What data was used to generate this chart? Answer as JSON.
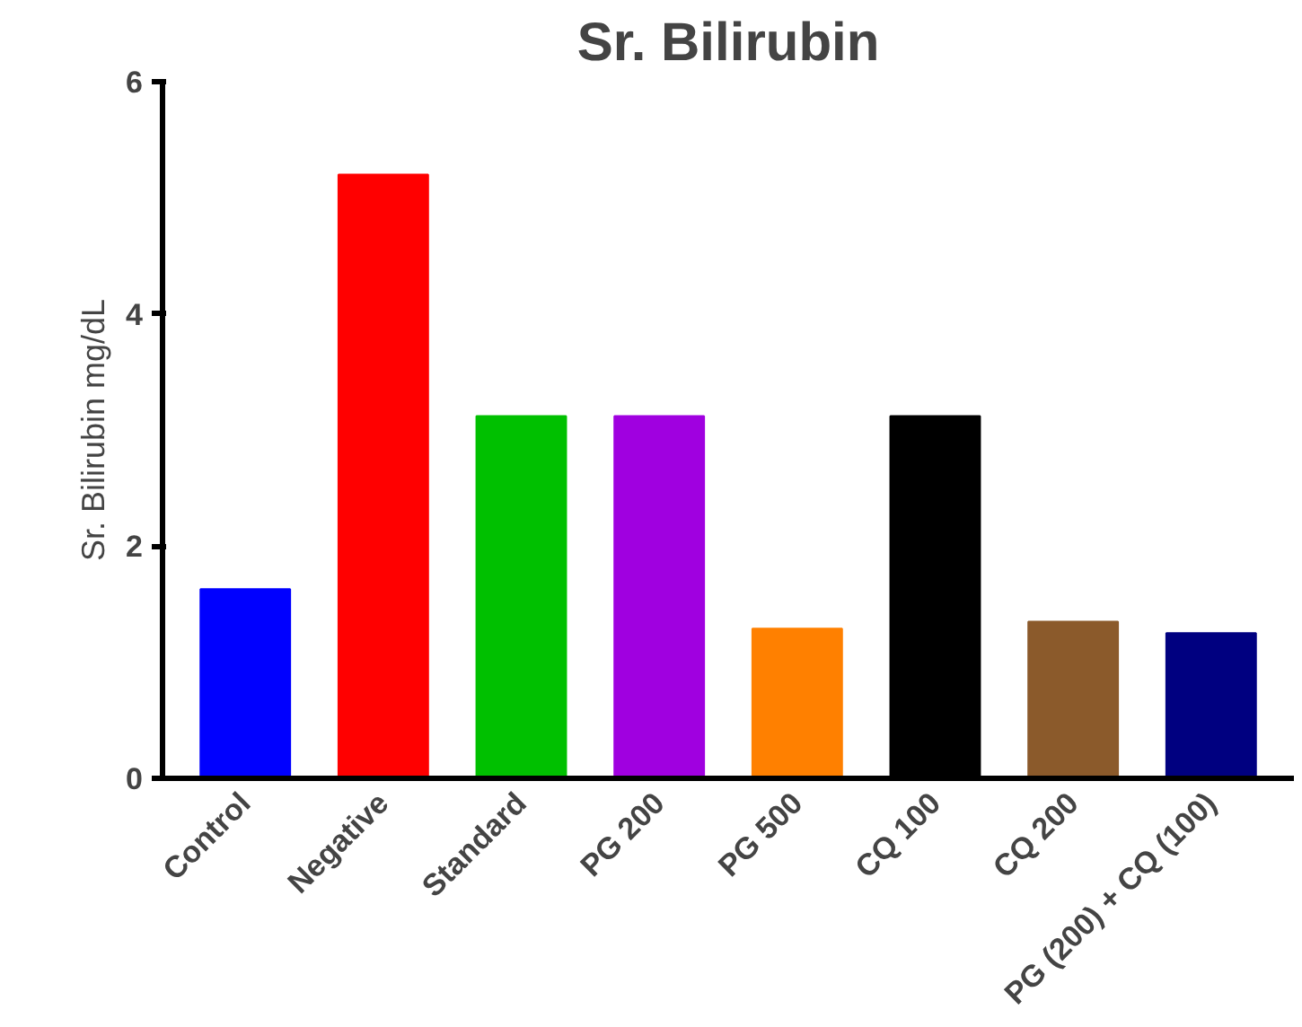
{
  "chart_data": {
    "type": "bar",
    "title": "Sr. Bilirubin",
    "ylabel": "Sr. Bilirubin mg/dL",
    "categories": [
      "Control",
      "Negative",
      "Standard",
      "PG 200",
      "PG 500",
      "CQ 100",
      "CQ 200",
      "PG (200) + CQ (100)"
    ],
    "values": [
      1.63,
      5.2,
      3.12,
      3.12,
      1.29,
      3.12,
      1.35,
      1.25
    ],
    "colors": [
      "#0000ff",
      "#ff0000",
      "#00c000",
      "#a000e0",
      "#ff8000",
      "#000000",
      "#8b5a2b",
      "#000080"
    ],
    "ylim": [
      0,
      6
    ],
    "yticks": [
      0,
      2,
      4,
      6
    ],
    "grid": false
  }
}
